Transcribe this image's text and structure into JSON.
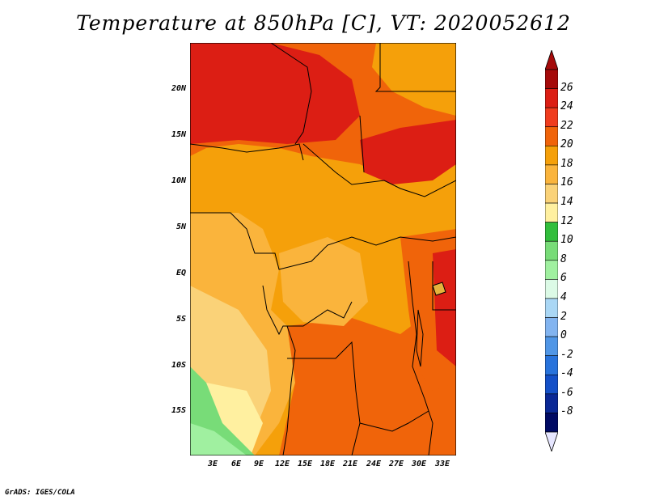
{
  "title": "Temperature at 850hPa [C], VT: 2020052612",
  "credit": "GrADS: IGES/COLA",
  "map": {
    "lat_labels": [
      "20N",
      "15N",
      "10N",
      "5N",
      "EQ",
      "5S",
      "10S",
      "15S"
    ],
    "lon_labels": [
      "3E",
      "6E",
      "9E",
      "12E",
      "15E",
      "18E",
      "21E",
      "24E",
      "27E",
      "30E",
      "33E"
    ]
  },
  "colorbar": {
    "labels": [
      "26",
      "24",
      "22",
      "20",
      "18",
      "16",
      "14",
      "12",
      "10",
      "8",
      "6",
      "4",
      "2",
      "0",
      "-2",
      "-4",
      "-6",
      "-8"
    ],
    "colors": [
      "#a50a0a",
      "#dc1e14",
      "#f03c1e",
      "#f0640a",
      "#f5a00a",
      "#fab43c",
      "#fad278",
      "#fff0a0",
      "#32be3c",
      "#78dc78",
      "#a0f0a0",
      "#dcfae6",
      "#aad7f5",
      "#82b4f0",
      "#5096e6",
      "#2873dc",
      "#1450c8",
      "#0a2896",
      "#000a64"
    ],
    "over_color": "#a50a0a",
    "under_color": "#e6e6ff"
  }
}
